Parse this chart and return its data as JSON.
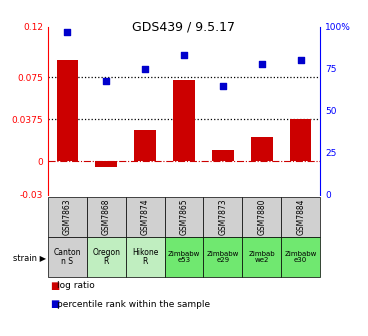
{
  "title": "GDS439 / 9.5.17",
  "samples": [
    "GSM7863",
    "GSM7868",
    "GSM7874",
    "GSM7865",
    "GSM7873",
    "GSM7880",
    "GSM7884"
  ],
  "strains": [
    "Canton\nn S",
    "Oregon\nR",
    "Hikone\nR",
    "Zimbabw\ne53",
    "Zimbabw\ne29",
    "Zimbab\nwe2",
    "Zimbabw\ne30"
  ],
  "strain_colors": [
    "#d0d0d0",
    "#c0eec0",
    "#c0eec0",
    "#70e870",
    "#70e870",
    "#70e870",
    "#70e870"
  ],
  "log_ratio": [
    0.09,
    -0.005,
    0.028,
    0.073,
    0.01,
    0.022,
    0.038
  ],
  "percentile": [
    97,
    68,
    75,
    83,
    65,
    78,
    80
  ],
  "bar_color": "#cc0000",
  "dot_color": "#0000cc",
  "ylim_left": [
    -0.03,
    0.12
  ],
  "ylim_right": [
    0,
    100
  ],
  "yticks_left": [
    -0.03,
    0,
    0.0375,
    0.075,
    0.12
  ],
  "ytick_labels_left": [
    "-0.03",
    "0",
    "0.0375",
    "0.075",
    "0.12"
  ],
  "yticks_right": [
    0,
    25,
    50,
    75,
    100
  ],
  "ytick_labels_right": [
    "0",
    "25",
    "50",
    "75",
    "100%"
  ],
  "hlines": [
    0.075,
    0.0375
  ],
  "gsm_bg": "#d0d0d0",
  "background_color": "#ffffff"
}
